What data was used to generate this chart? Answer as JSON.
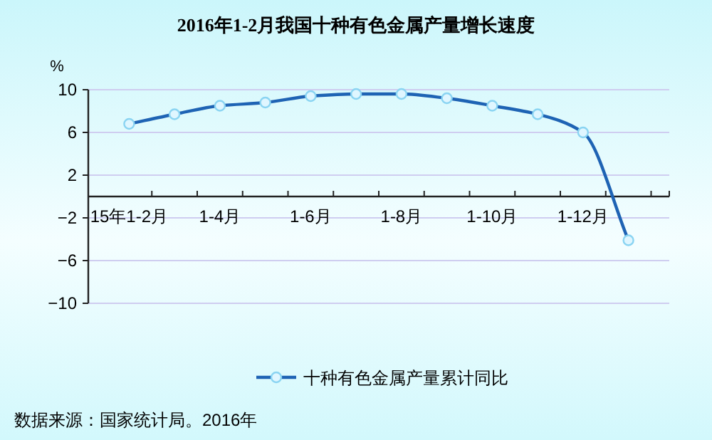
{
  "chart_data": {
    "type": "line",
    "title": "2016年1-2月我国十种有色金属产量增长速度",
    "ylabel": "%",
    "categories": [
      "15年1-2月",
      null,
      "1-4月",
      null,
      "1-6月",
      null,
      "1-8月",
      null,
      "1-10月",
      null,
      "1-12月",
      null
    ],
    "series": [
      {
        "name": "十种有色金属产量累计同比",
        "color": "#1e63b4",
        "values": [
          6.8,
          7.7,
          8.5,
          8.8,
          9.4,
          9.6,
          9.6,
          9.2,
          8.5,
          7.7,
          6.0,
          -4.1
        ]
      }
    ],
    "ylim": [
      -10,
      10
    ],
    "yticks": [
      -10,
      -6,
      -2,
      2,
      6,
      10
    ],
    "grid": "y",
    "legend": "bottom",
    "marker": "circle",
    "line_style": "solid",
    "annotations": [
      "数据来源：国家统计局。2016年"
    ]
  }
}
